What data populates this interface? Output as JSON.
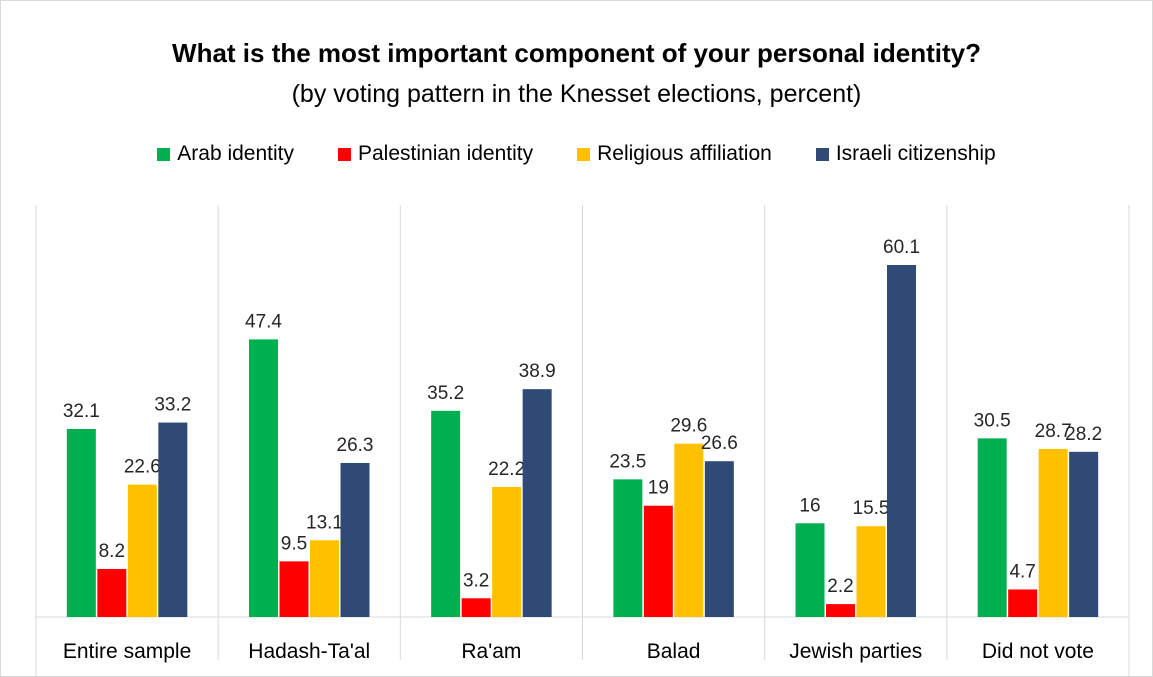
{
  "chart_data": {
    "type": "bar",
    "title": "What is the most important component of your personal identity?",
    "subtitle": "(by voting pattern in the Knesset elections, percent)",
    "categories": [
      "Entire sample",
      "Hadash-Ta'al",
      "Ra'am",
      "Balad",
      "Jewish parties",
      "Did not vote"
    ],
    "series": [
      {
        "name": "Arab identity",
        "color": "#00b050",
        "values": [
          32.1,
          47.4,
          35.2,
          23.5,
          16,
          30.5
        ]
      },
      {
        "name": "Palestinian identity",
        "color": "#ff0000",
        "values": [
          8.2,
          9.5,
          3.2,
          19,
          2.2,
          4.7
        ]
      },
      {
        "name": "Religious affiliation",
        "color": "#ffc000",
        "values": [
          22.6,
          13.1,
          22.2,
          29.6,
          15.5,
          28.7
        ]
      },
      {
        "name": "Israeli citizenship",
        "color": "#2f4b75",
        "values": [
          33.2,
          26.3,
          38.9,
          26.6,
          60.1,
          28.2
        ]
      }
    ],
    "ylim": [
      0,
      65
    ],
    "legend": "top",
    "grid": false
  }
}
